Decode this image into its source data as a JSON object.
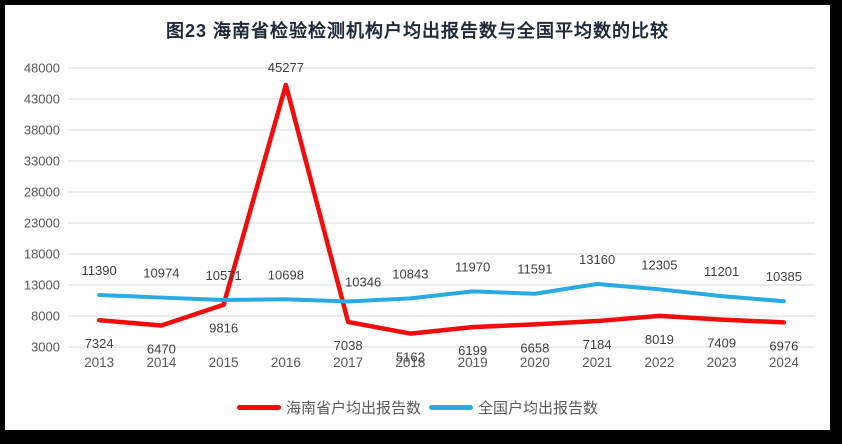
{
  "title": "图23  海南省检验检测机构户均出报告数与全国平均数的比较",
  "frame": {
    "border_color": "#000000",
    "background_color": "#ffffff"
  },
  "colors": {
    "grid": "#d9d9d9",
    "axis_text": "#595959",
    "data_label_text": "#404040",
    "title_text": "#1f2a3a"
  },
  "chart_data": {
    "type": "line",
    "title": "图23  海南省检验检测机构户均出报告数与全国平均数的比较",
    "xlabel": "",
    "ylabel": "",
    "categories": [
      "2013",
      "2014",
      "2015",
      "2016",
      "2017",
      "2018",
      "2019",
      "2020",
      "2021",
      "2022",
      "2023",
      "2024"
    ],
    "series": [
      {
        "name": "海南省户均出报告数",
        "color": "#f40b0b",
        "label_position": "below",
        "values": [
          7324,
          6470,
          9816,
          45277,
          7038,
          5162,
          6199,
          6658,
          7184,
          8019,
          7409,
          6976
        ]
      },
      {
        "name": "全国户均出报告数",
        "color": "#29abe2",
        "label_position": "above",
        "values": [
          11390,
          10974,
          10571,
          10698,
          10346,
          10843,
          11970,
          11591,
          13160,
          12305,
          11201,
          10385
        ]
      }
    ],
    "ylim": [
      3000,
      48000
    ],
    "ytick_step": 5000,
    "yticks": [
      3000,
      8000,
      13000,
      18000,
      23000,
      28000,
      33000,
      38000,
      43000,
      48000
    ],
    "grid": "horizontal",
    "legend_position": "bottom",
    "label_overrides": {
      "0": {
        "3": "above"
      }
    },
    "label_nudges": {
      "0": {
        "3": [
          0,
          7
        ]
      },
      "1": {
        "4": [
          15,
          5
        ]
      }
    }
  }
}
